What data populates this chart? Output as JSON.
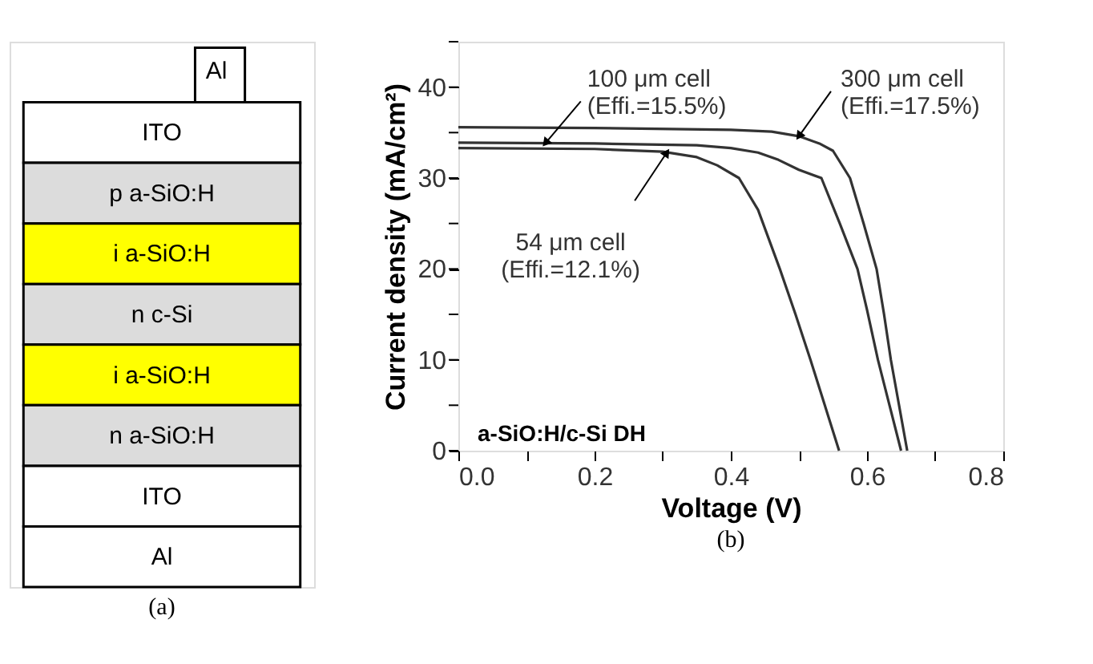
{
  "chart_data": [
    {
      "type": "other",
      "title": "(a)",
      "categories": [
        "ITO",
        "p a-SiO:H",
        "i a-SiO:H",
        "n c-Si",
        "i a-SiO:H",
        "n a-SiO:H",
        "ITO",
        "Al"
      ],
      "colors": [
        "#ffffff",
        "#dcdcdc",
        "#ffff00",
        "#dcdcdc",
        "#ffff00",
        "#dcdcdc",
        "#ffffff",
        "#ffffff"
      ],
      "annotations": [
        "Al"
      ]
    },
    {
      "type": "line",
      "title": "(b)",
      "xlabel": "Voltage (V)",
      "ylabel": "Current density (mA/cm²)",
      "xlim": [
        0,
        0.8
      ],
      "ylim": [
        0,
        45
      ],
      "xticks": [
        {
          "value": 0,
          "label": "0.0"
        },
        {
          "value": 0.1,
          "label": null
        },
        {
          "value": 0.2,
          "label": "0.2"
        },
        {
          "value": 0.3,
          "label": null
        },
        {
          "value": 0.4,
          "label": "0.4"
        },
        {
          "value": 0.5,
          "label": null
        },
        {
          "value": 0.6,
          "label": "0.6"
        },
        {
          "value": 0.7,
          "label": null
        },
        {
          "value": 0.8,
          "label": "0.8"
        }
      ],
      "yticks": [
        0,
        {
          "value": 5,
          "label": null
        },
        10,
        {
          "value": 15,
          "label": null
        },
        20,
        {
          "value": 25,
          "label": null
        },
        30,
        {
          "value": 35,
          "label": null
        },
        40,
        {
          "value": 45,
          "label": null
        }
      ],
      "grid": false,
      "legend": false,
      "marker": "none",
      "line_style": "solid",
      "series": [
        {
          "color": "#333333",
          "x": [
            0,
            0.2,
            0.4,
            0.46,
            0.5,
            0.53,
            0.55,
            0.575,
            0.595,
            0.614,
            0.625,
            0.635,
            0.647,
            0.659
          ],
          "values": [
            35.6,
            35.5,
            35.3,
            35.1,
            34.6,
            33.8,
            33,
            30,
            25,
            20,
            15,
            10,
            5,
            0
          ]
        },
        {
          "color": "#333333",
          "x": [
            0,
            0.2,
            0.35,
            0.4,
            0.44,
            0.47,
            0.5,
            0.533,
            0.56,
            0.586,
            0.6,
            0.616,
            0.633,
            0.65
          ],
          "values": [
            33.9,
            33.8,
            33.6,
            33.3,
            32.8,
            32,
            30.9,
            30,
            25,
            20,
            15.5,
            10,
            5,
            0
          ]
        },
        {
          "color": "#333333",
          "x": [
            0,
            0.2,
            0.3,
            0.35,
            0.38,
            0.412,
            0.44,
            0.472,
            0.495,
            0.517,
            0.538,
            0.559
          ],
          "values": [
            33.3,
            33.2,
            32.9,
            32.3,
            31.4,
            30,
            26.5,
            20,
            15,
            10,
            5,
            0
          ]
        }
      ],
      "annotations": [
        {
          "text": "100 μm cell\n(Effi.=15.5%)",
          "x": 0.128,
          "y": 33.85
        },
        {
          "text": "300 μm cell\n(Effi.=17.5%)",
          "x": 0.5,
          "y": 34.6
        },
        {
          "text": "54 μm cell\n(Effi.=12.1%)",
          "x": 0.306,
          "y": 32.8
        },
        "a-SiO:H/c-Si DH"
      ]
    }
  ]
}
